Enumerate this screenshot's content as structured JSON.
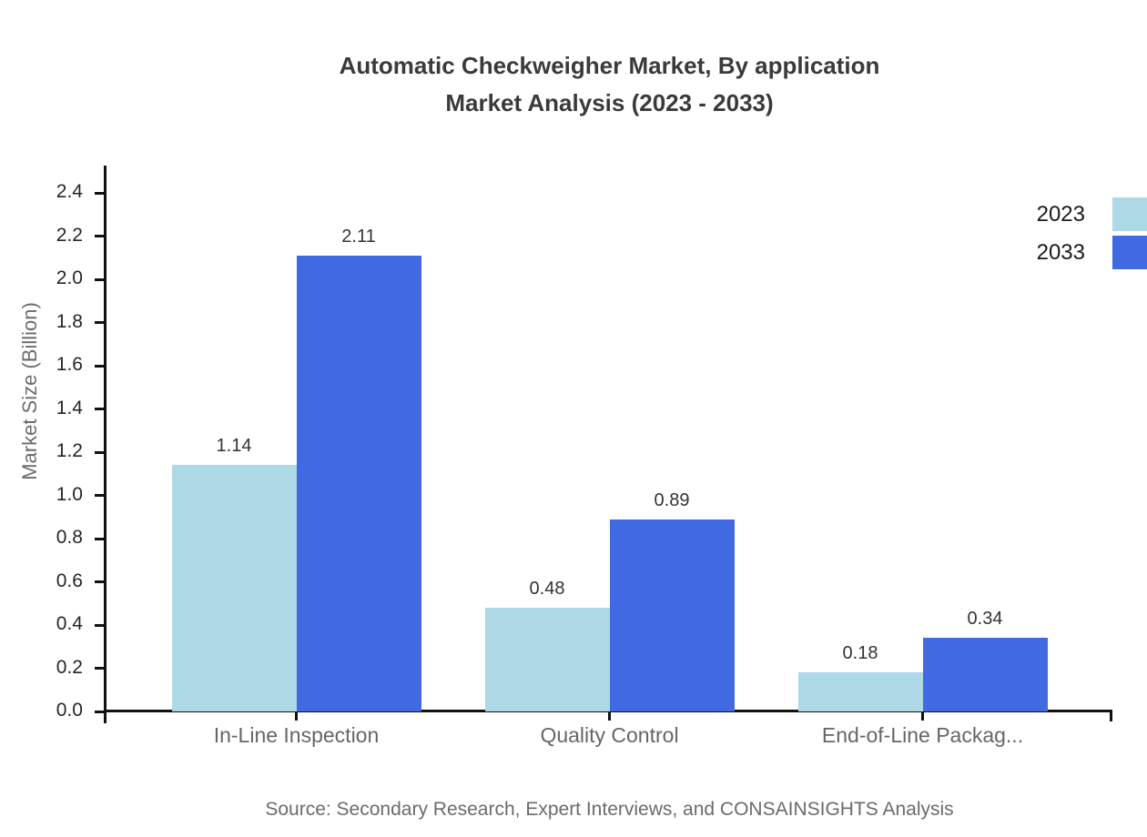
{
  "chart_data": {
    "type": "bar",
    "title_line1": "Automatic Checkweigher Market, By application",
    "title_line2": "Market Analysis (2023 - 2033)",
    "ylabel": "Market Size (Billion)",
    "xlabel": "",
    "categories": [
      "In-Line Inspection",
      "Quality Control",
      "End-of-Line Packag..."
    ],
    "series": [
      {
        "name": "2023",
        "color": "#ADD8E6",
        "values": [
          1.14,
          0.48,
          0.18
        ]
      },
      {
        "name": "2033",
        "color": "#4169E1",
        "values": [
          2.11,
          0.89,
          0.34
        ]
      }
    ],
    "yticks": [
      "0.0",
      "0.2",
      "0.4",
      "0.6",
      "0.8",
      "1.0",
      "1.2",
      "1.4",
      "1.6",
      "1.8",
      "2.0",
      "2.2",
      "2.4"
    ],
    "ylim": [
      0,
      2.5
    ],
    "grid": false,
    "legend_position": "top-right",
    "source": "Source: Secondary Research, Expert Interviews, and CONSAINSIGHTS Analysis"
  },
  "colors": {
    "series_2023": "#ADD8E6",
    "series_2033": "#4169E1",
    "axis": "#111111",
    "title_text": "#3a3a3a",
    "muted_text": "#6b6b6b",
    "tick_text": "#262626",
    "background": "#ffffff"
  }
}
